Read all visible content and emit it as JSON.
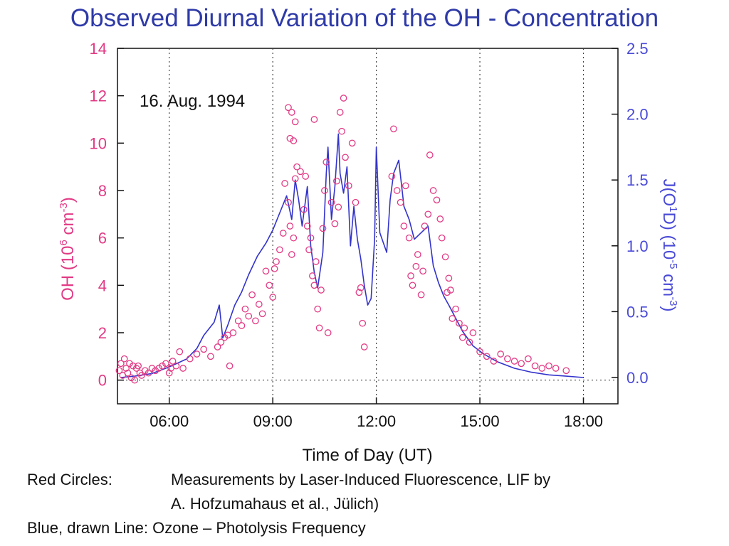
{
  "title": "Observed Diurnal Variation of the OH - Concentration",
  "chart_data": {
    "type": "scatter",
    "annotation": "16. Aug. 1994",
    "x_axis": {
      "label": "Time of Day (UT)",
      "range_hours": [
        4.5,
        19.0
      ],
      "ticks": [
        {
          "hour": 6,
          "label": "06:00"
        },
        {
          "hour": 9,
          "label": "09:00"
        },
        {
          "hour": 12,
          "label": "12:00"
        },
        {
          "hour": 15,
          "label": "15:00"
        },
        {
          "hour": 18,
          "label": "18:00"
        }
      ],
      "gridlines": "vertical dotted at tick hours"
    },
    "y_left": {
      "label_main": "OH  (10",
      "label_sup1": "6",
      "label_mid": " cm",
      "label_sup2": "-3",
      "label_end": ")",
      "range": [
        -1,
        14
      ],
      "ticks": [
        "0",
        "2",
        "4",
        "6",
        "8",
        "10",
        "12",
        "14"
      ],
      "color": "#e23a84"
    },
    "y_right": {
      "label_a": "J(O",
      "label_sup1": "1",
      "label_b": "D)  (10",
      "label_sup2": "-5",
      "label_c": " cm",
      "label_sup3": "-3",
      "label_d": ")",
      "range": [
        -0.2,
        2.5
      ],
      "ticks": [
        "0.0",
        "0.5",
        "1.0",
        "1.5",
        "2.0",
        "2.5"
      ],
      "color": "#4a4ad8"
    },
    "series": [
      {
        "kind": "scatter",
        "axis": "left",
        "color": "#e23a84",
        "points": [
          [
            4.55,
            0.4
          ],
          [
            4.6,
            0.7
          ],
          [
            4.65,
            0.2
          ],
          [
            4.7,
            0.9
          ],
          [
            4.75,
            0.5
          ],
          [
            4.8,
            0.3
          ],
          [
            4.85,
            0.7
          ],
          [
            4.9,
            0.1
          ],
          [
            4.95,
            0.6
          ],
          [
            5.0,
            0.0
          ],
          [
            5.05,
            0.5
          ],
          [
            5.1,
            0.6
          ],
          [
            5.15,
            0.3
          ],
          [
            5.2,
            0.2
          ],
          [
            5.3,
            0.4
          ],
          [
            5.4,
            0.3
          ],
          [
            5.5,
            0.5
          ],
          [
            5.6,
            0.4
          ],
          [
            5.7,
            0.5
          ],
          [
            5.8,
            0.6
          ],
          [
            5.9,
            0.7
          ],
          [
            6.0,
            0.3
          ],
          [
            6.05,
            0.5
          ],
          [
            6.1,
            0.8
          ],
          [
            6.2,
            0.6
          ],
          [
            6.3,
            1.2
          ],
          [
            6.4,
            0.5
          ],
          [
            6.6,
            0.9
          ],
          [
            6.8,
            1.1
          ],
          [
            7.0,
            1.3
          ],
          [
            7.2,
            1.0
          ],
          [
            7.4,
            1.4
          ],
          [
            7.5,
            1.6
          ],
          [
            7.6,
            1.8
          ],
          [
            7.7,
            1.9
          ],
          [
            7.75,
            0.6
          ],
          [
            7.85,
            2.0
          ],
          [
            8.0,
            2.5
          ],
          [
            8.1,
            2.3
          ],
          [
            8.2,
            3.0
          ],
          [
            8.3,
            2.7
          ],
          [
            8.4,
            3.6
          ],
          [
            8.5,
            2.5
          ],
          [
            8.6,
            3.2
          ],
          [
            8.7,
            2.8
          ],
          [
            8.8,
            4.6
          ],
          [
            8.9,
            4.0
          ],
          [
            9.0,
            3.5
          ],
          [
            9.05,
            4.7
          ],
          [
            9.1,
            5.0
          ],
          [
            9.2,
            5.5
          ],
          [
            9.3,
            6.2
          ],
          [
            9.35,
            8.3
          ],
          [
            9.45,
            7.5
          ],
          [
            9.5,
            6.5
          ],
          [
            9.55,
            5.3
          ],
          [
            9.6,
            6.0
          ],
          [
            9.65,
            8.5
          ],
          [
            9.7,
            9.0
          ],
          [
            9.8,
            8.8
          ],
          [
            9.9,
            7.2
          ],
          [
            9.95,
            8.6
          ],
          [
            10.0,
            6.5
          ],
          [
            10.05,
            5.5
          ],
          [
            10.1,
            6.0
          ],
          [
            10.15,
            4.4
          ],
          [
            10.2,
            4.0
          ],
          [
            10.25,
            5.0
          ],
          [
            10.3,
            3.0
          ],
          [
            10.35,
            2.2
          ],
          [
            10.4,
            3.8
          ],
          [
            10.45,
            6.4
          ],
          [
            10.5,
            8.0
          ],
          [
            10.55,
            9.2
          ],
          [
            10.6,
            2.0
          ],
          [
            10.7,
            7.5
          ],
          [
            10.8,
            6.6
          ],
          [
            10.85,
            8.4
          ],
          [
            10.9,
            7.3
          ],
          [
            10.95,
            11.3
          ],
          [
            11.0,
            10.5
          ],
          [
            11.05,
            11.9
          ],
          [
            11.1,
            9.4
          ],
          [
            11.2,
            8.2
          ],
          [
            11.3,
            10.0
          ],
          [
            11.4,
            7.5
          ],
          [
            11.5,
            3.7
          ],
          [
            11.55,
            3.9
          ],
          [
            11.6,
            2.4
          ],
          [
            11.65,
            1.4
          ],
          [
            9.45,
            11.5
          ],
          [
            9.55,
            11.3
          ],
          [
            9.65,
            10.9
          ],
          [
            10.2,
            11.0
          ],
          [
            9.5,
            10.2
          ],
          [
            9.6,
            10.1
          ],
          [
            12.5,
            10.6
          ],
          [
            12.45,
            8.6
          ],
          [
            12.6,
            8.0
          ],
          [
            12.7,
            7.5
          ],
          [
            12.8,
            6.5
          ],
          [
            12.85,
            8.2
          ],
          [
            12.95,
            6.0
          ],
          [
            13.0,
            4.4
          ],
          [
            13.05,
            4.0
          ],
          [
            13.15,
            4.8
          ],
          [
            13.2,
            5.3
          ],
          [
            13.3,
            3.6
          ],
          [
            13.35,
            4.6
          ],
          [
            13.4,
            6.5
          ],
          [
            13.5,
            7.0
          ],
          [
            13.55,
            9.5
          ],
          [
            13.65,
            8.0
          ],
          [
            13.75,
            7.6
          ],
          [
            13.85,
            6.8
          ],
          [
            13.9,
            6.0
          ],
          [
            14.0,
            5.2
          ],
          [
            14.05,
            3.7
          ],
          [
            14.1,
            4.3
          ],
          [
            14.15,
            3.8
          ],
          [
            14.2,
            2.6
          ],
          [
            14.3,
            3.0
          ],
          [
            14.4,
            2.4
          ],
          [
            14.5,
            1.8
          ],
          [
            14.55,
            2.2
          ],
          [
            14.7,
            1.6
          ],
          [
            14.8,
            2.0
          ],
          [
            15.0,
            1.2
          ],
          [
            15.2,
            1.0
          ],
          [
            15.4,
            0.8
          ],
          [
            15.6,
            1.1
          ],
          [
            15.8,
            0.9
          ],
          [
            16.0,
            0.8
          ],
          [
            16.2,
            0.7
          ],
          [
            16.4,
            0.9
          ],
          [
            16.6,
            0.6
          ],
          [
            16.8,
            0.5
          ],
          [
            17.0,
            0.6
          ],
          [
            17.2,
            0.5
          ],
          [
            17.5,
            0.4
          ]
        ]
      },
      {
        "kind": "line",
        "axis": "right",
        "color": "#3333cc",
        "points": [
          [
            4.6,
            0.0
          ],
          [
            5.0,
            0.01
          ],
          [
            5.5,
            0.03
          ],
          [
            6.0,
            0.08
          ],
          [
            6.5,
            0.14
          ],
          [
            6.8,
            0.22
          ],
          [
            7.0,
            0.32
          ],
          [
            7.3,
            0.42
          ],
          [
            7.45,
            0.55
          ],
          [
            7.55,
            0.3
          ],
          [
            7.7,
            0.4
          ],
          [
            7.9,
            0.55
          ],
          [
            8.1,
            0.65
          ],
          [
            8.3,
            0.78
          ],
          [
            8.55,
            0.92
          ],
          [
            8.8,
            1.02
          ],
          [
            9.0,
            1.12
          ],
          [
            9.2,
            1.25
          ],
          [
            9.4,
            1.38
          ],
          [
            9.55,
            1.2
          ],
          [
            9.65,
            1.5
          ],
          [
            9.75,
            1.35
          ],
          [
            9.85,
            1.15
          ],
          [
            10.0,
            1.45
          ],
          [
            10.1,
            1.0
          ],
          [
            10.2,
            0.8
          ],
          [
            10.3,
            0.68
          ],
          [
            10.45,
            0.95
          ],
          [
            10.55,
            1.55
          ],
          [
            10.6,
            1.75
          ],
          [
            10.7,
            1.2
          ],
          [
            10.8,
            1.45
          ],
          [
            10.9,
            1.85
          ],
          [
            10.95,
            1.55
          ],
          [
            11.05,
            1.4
          ],
          [
            11.15,
            1.6
          ],
          [
            11.25,
            1.0
          ],
          [
            11.35,
            1.3
          ],
          [
            11.45,
            1.05
          ],
          [
            11.55,
            0.9
          ],
          [
            11.65,
            0.7
          ],
          [
            11.75,
            0.55
          ],
          [
            11.85,
            0.6
          ],
          [
            11.95,
            1.05
          ],
          [
            12.0,
            1.75
          ],
          [
            12.1,
            1.1
          ],
          [
            12.3,
            0.95
          ],
          [
            12.4,
            1.35
          ],
          [
            12.5,
            1.55
          ],
          [
            12.65,
            1.65
          ],
          [
            12.8,
            1.3
          ],
          [
            12.95,
            1.2
          ],
          [
            13.1,
            1.05
          ],
          [
            13.3,
            1.1
          ],
          [
            13.5,
            1.15
          ],
          [
            13.65,
            0.85
          ],
          [
            13.8,
            0.72
          ],
          [
            13.95,
            0.62
          ],
          [
            14.1,
            0.55
          ],
          [
            14.3,
            0.45
          ],
          [
            14.5,
            0.35
          ],
          [
            14.8,
            0.24
          ],
          [
            15.1,
            0.18
          ],
          [
            15.5,
            0.12
          ],
          [
            16.0,
            0.07
          ],
          [
            16.5,
            0.04
          ],
          [
            17.0,
            0.02
          ],
          [
            17.5,
            0.01
          ],
          [
            18.0,
            0.0
          ]
        ]
      }
    ]
  },
  "legend": {
    "red_label": "Red Circles:",
    "red_line1": "Measurements by Laser-Induced Fluorescence, LIF by",
    "red_line2": "A. Hofzumahaus et al., Jülich)",
    "blue_text": "Blue, drawn Line: Ozone – Photolysis Frequency"
  }
}
